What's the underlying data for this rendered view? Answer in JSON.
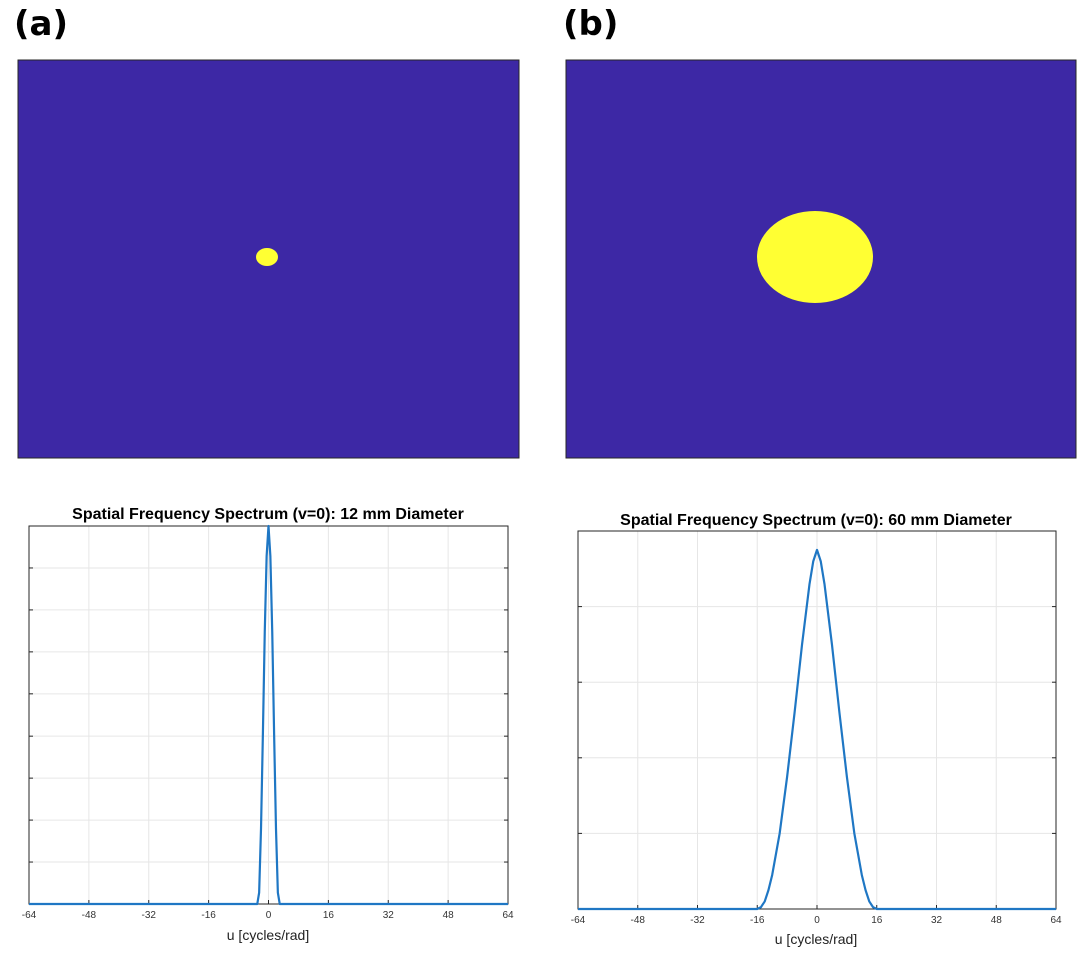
{
  "panels": {
    "a_label": "(a)",
    "b_label": "(b)"
  },
  "colors": {
    "image_background": "#3d28a5",
    "disc": "#ffff33",
    "line": "#1f77c4",
    "grid": "#e6e6e6",
    "axis": "#262626"
  },
  "chart_data": [
    {
      "type": "heatmap",
      "title": "",
      "description_values": {
        "disc_diameter_mm": 12
      },
      "values": [
        "background",
        "disc"
      ]
    },
    {
      "type": "heatmap",
      "title": "",
      "description_values": {
        "disc_diameter_mm": 60
      },
      "values": [
        "background",
        "disc"
      ]
    },
    {
      "type": "line",
      "title": "Spatial Frequency Spectrum (v=0): 12 mm Diameter",
      "xlabel": "u [cycles/rad]",
      "ylabel": "",
      "xlim": [
        -64,
        64
      ],
      "ylim": [
        0,
        1
      ],
      "xticks": [
        -64,
        -48,
        -32,
        -16,
        0,
        16,
        32,
        48,
        64
      ],
      "yticks": [
        0,
        0.111,
        0.222,
        0.333,
        0.444,
        0.556,
        0.667,
        0.778,
        0.889
      ],
      "grid": true,
      "series": [
        {
          "x": [
            -64,
            -3,
            -2.5,
            -2,
            -1.5,
            -1,
            -0.5,
            0,
            0.5,
            1,
            1.5,
            2,
            2.5,
            3,
            64
          ],
          "values": [
            0,
            0,
            0.03,
            0.2,
            0.45,
            0.72,
            0.92,
            1.0,
            0.92,
            0.72,
            0.45,
            0.2,
            0.03,
            0,
            0
          ]
        }
      ]
    },
    {
      "type": "line",
      "title": "Spatial Frequency Spectrum (v=0): 60 mm Diameter",
      "xlabel": "u [cycles/rad]",
      "ylabel": "",
      "xlim": [
        -64,
        64
      ],
      "ylim": [
        0,
        1
      ],
      "xticks": [
        -64,
        -48,
        -32,
        -16,
        0,
        16,
        32,
        48,
        64
      ],
      "yticks": [
        0,
        0.2,
        0.4,
        0.6,
        0.8
      ],
      "grid": true,
      "series": [
        {
          "x": [
            -64,
            -16,
            -15,
            -14,
            -13,
            -12,
            -10,
            -8,
            -6,
            -4,
            -2,
            -1,
            0,
            1,
            2,
            4,
            6,
            8,
            10,
            12,
            13,
            14,
            15,
            16,
            64
          ],
          "values": [
            0,
            0,
            0.005,
            0.02,
            0.05,
            0.09,
            0.2,
            0.35,
            0.52,
            0.7,
            0.86,
            0.92,
            0.95,
            0.92,
            0.86,
            0.7,
            0.52,
            0.35,
            0.2,
            0.09,
            0.05,
            0.02,
            0.005,
            0,
            0
          ]
        }
      ]
    }
  ]
}
